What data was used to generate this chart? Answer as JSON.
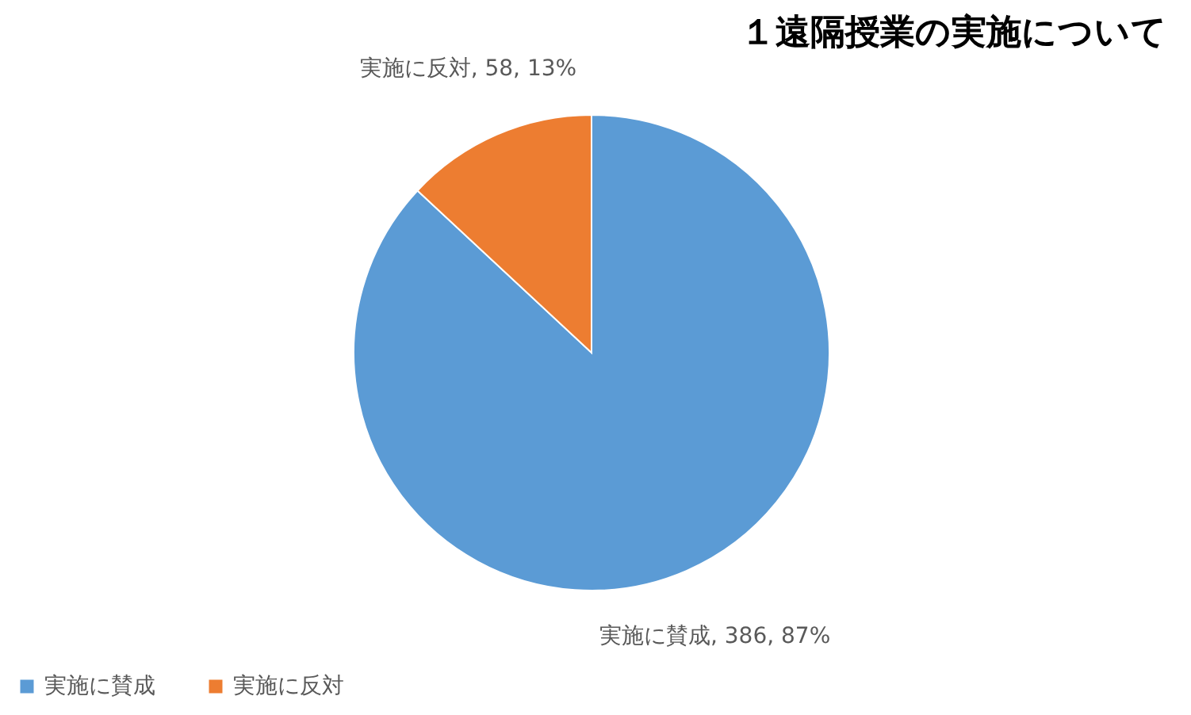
{
  "chart_data": {
    "type": "pie",
    "title": "１遠隔授業の実施について",
    "categories": [
      "実施に賛成",
      "実施に反対"
    ],
    "values": [
      386,
      58
    ],
    "colors": [
      "#5b9bd5",
      "#ed7d31"
    ],
    "value_labels": [
      "実施に賛成, 386, 87%",
      "実施に反対, 58, 13%"
    ],
    "legend": "bottom"
  }
}
